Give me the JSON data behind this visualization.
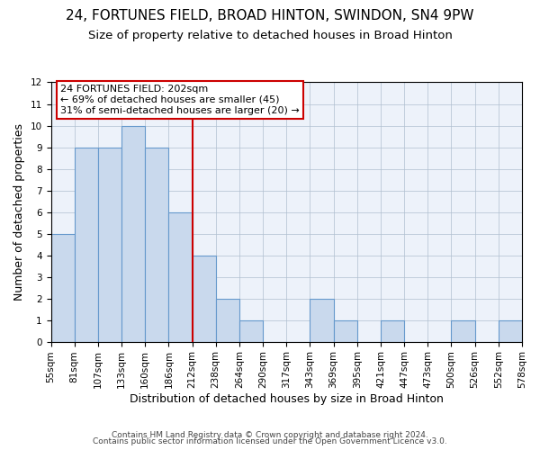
{
  "title": "24, FORTUNES FIELD, BROAD HINTON, SWINDON, SN4 9PW",
  "subtitle": "Size of property relative to detached houses in Broad Hinton",
  "xlabel": "Distribution of detached houses by size in Broad Hinton",
  "ylabel": "Number of detached properties",
  "bin_labels": [
    "55sqm",
    "81sqm",
    "107sqm",
    "133sqm",
    "160sqm",
    "186sqm",
    "212sqm",
    "238sqm",
    "264sqm",
    "290sqm",
    "317sqm",
    "343sqm",
    "369sqm",
    "395sqm",
    "421sqm",
    "447sqm",
    "473sqm",
    "500sqm",
    "526sqm",
    "552sqm",
    "578sqm"
  ],
  "bar_values": [
    5,
    9,
    9,
    10,
    9,
    6,
    4,
    2,
    1,
    0,
    0,
    2,
    1,
    0,
    1,
    0,
    0,
    1,
    0,
    1
  ],
  "bar_color": "#c9d9ed",
  "bar_edge_color": "#6699cc",
  "reference_line_color": "#cc0000",
  "ylim": [
    0,
    12
  ],
  "yticks": [
    0,
    1,
    2,
    3,
    4,
    5,
    6,
    7,
    8,
    9,
    10,
    11,
    12
  ],
  "annotation_title": "24 FORTUNES FIELD: 202sqm",
  "annotation_line1": "← 69% of detached houses are smaller (45)",
  "annotation_line2": "31% of semi-detached houses are larger (20) →",
  "annotation_box_edge": "#cc0000",
  "footer_line1": "Contains HM Land Registry data © Crown copyright and database right 2024.",
  "footer_line2": "Contains public sector information licensed under the Open Government Licence v3.0.",
  "background_color": "#edf2fa",
  "grid_color": "#b0bfd0",
  "title_fontsize": 11,
  "subtitle_fontsize": 9.5,
  "axis_label_fontsize": 9,
  "tick_fontsize": 7.5,
  "annotation_fontsize": 8,
  "footer_fontsize": 6.5
}
